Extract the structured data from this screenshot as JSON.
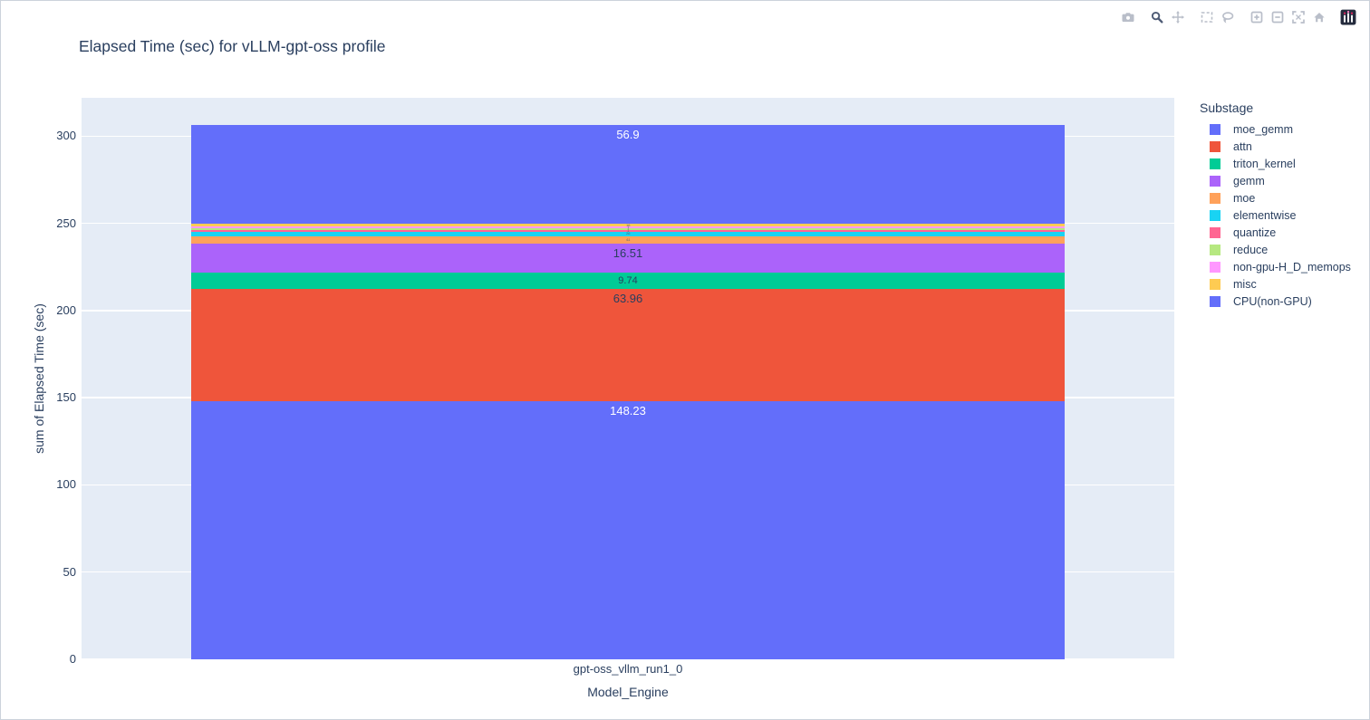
{
  "colors": {
    "page_background": "#ffffff",
    "page_border": "#ccd3db",
    "plot_background": "#e5ecf6",
    "grid": "#ffffff",
    "text": "#2a3f5f",
    "modebar_inactive": "#b9bec9",
    "modebar_active": "#4e5b75",
    "plotly_logo_bg": "#242b3d"
  },
  "modebar": {
    "groups": [
      [
        {
          "id": "download-plot",
          "icon": "camera",
          "active": false
        }
      ],
      [
        {
          "id": "zoom",
          "icon": "magnifier",
          "active": true
        },
        {
          "id": "pan",
          "icon": "pan",
          "active": false
        }
      ],
      [
        {
          "id": "box-select",
          "icon": "box-select",
          "active": false
        },
        {
          "id": "lasso-select",
          "icon": "lasso",
          "active": false
        }
      ],
      [
        {
          "id": "zoom-in",
          "icon": "zoom-in",
          "active": false
        },
        {
          "id": "zoom-out",
          "icon": "zoom-out",
          "active": false
        },
        {
          "id": "autoscale",
          "icon": "autoscale",
          "active": false
        },
        {
          "id": "reset-axes",
          "icon": "home",
          "active": false
        }
      ],
      [
        {
          "id": "plotly-logo",
          "icon": "plotly-logo",
          "active": false
        }
      ]
    ]
  },
  "chart_data": {
    "type": "bar",
    "stacked": true,
    "title": "Elapsed Time (sec) for vLLM-gpt-oss profile",
    "categories": [
      "gpt-oss_vllm_run1_0"
    ],
    "xlabel": "Model_Engine",
    "ylabel": "sum of Elapsed Time (sec)",
    "ylim": [
      0,
      322
    ],
    "yticks": [
      0,
      50,
      100,
      150,
      200,
      250,
      300
    ],
    "grid": true,
    "legend_title": "Substage",
    "legend_position": "right",
    "bar_width_fraction": 0.8,
    "series": [
      {
        "name": "moe_gemm",
        "color": "#636EFA",
        "values": [
          148.23
        ],
        "label_text": "148.23",
        "label_color": "#ffffff",
        "label_size": 13,
        "estimated": false
      },
      {
        "name": "attn",
        "color": "#EF553B",
        "values": [
          63.96
        ],
        "label_text": "63.96",
        "label_color": "#2a3f5f",
        "label_size": 13,
        "estimated": false
      },
      {
        "name": "triton_kernel",
        "color": "#00CC96",
        "values": [
          9.74
        ],
        "label_text": "9.74",
        "label_color": "#2a3f5f",
        "label_size": 11,
        "estimated": false
      },
      {
        "name": "gemm",
        "color": "#AB63FA",
        "values": [
          16.51
        ],
        "label_text": "16.51",
        "label_color": "#2a3f5f",
        "label_size": 13,
        "estimated": false
      },
      {
        "name": "moe",
        "color": "#FFA15A",
        "values": [
          4.1
        ],
        "label_text": "4.1",
        "label_color": "#5c6472",
        "label_size": 4,
        "estimated": true
      },
      {
        "name": "elementwise",
        "color": "#19D3F3",
        "values": [
          2.6
        ],
        "label_text": "2.6",
        "label_color": "#5c6472",
        "label_size": 4,
        "estimated": true
      },
      {
        "name": "quantize",
        "color": "#FF6692",
        "values": [
          1.0
        ],
        "label_text": "1",
        "label_color": "#5c6472",
        "label_size": 4,
        "estimated": true
      },
      {
        "name": "reduce",
        "color": "#B6E880",
        "values": [
          1.0
        ],
        "label_text": "1",
        "label_color": "#5c6472",
        "label_size": 4,
        "estimated": true
      },
      {
        "name": "non-gpu-H_D_memops",
        "color": "#FF97FF",
        "values": [
          1.0
        ],
        "label_text": "1",
        "label_color": "#5c6472",
        "label_size": 4,
        "estimated": true
      },
      {
        "name": "misc",
        "color": "#FECB52",
        "values": [
          1.6
        ],
        "label_text": "1.6",
        "label_color": "#5c6472",
        "label_size": 4,
        "estimated": true
      },
      {
        "name": "CPU(non-GPU)",
        "color": "#636EFA",
        "values": [
          56.9
        ],
        "label_text": "56.9",
        "label_color": "#ffffff",
        "label_size": 13,
        "estimated": false
      }
    ]
  }
}
